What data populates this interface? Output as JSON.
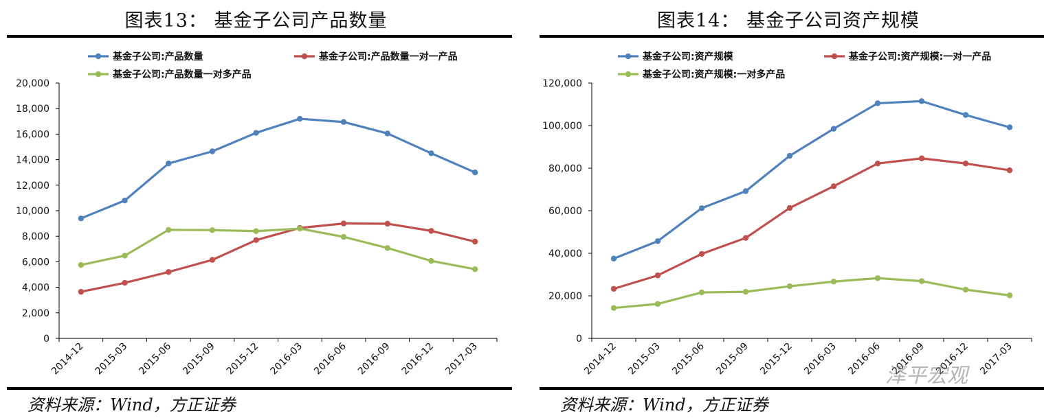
{
  "chart_data": [
    {
      "type": "line",
      "title": "图表13：  基金子公司产品数量",
      "categories": [
        "2014-12",
        "2015-03",
        "2015-06",
        "2015-09",
        "2015-12",
        "2016-03",
        "2016-06",
        "2016-09",
        "2016-12",
        "2017-03"
      ],
      "y_ticks": [
        "0",
        "2,000",
        "4,000",
        "6,000",
        "8,000",
        "10,000",
        "12,000",
        "14,000",
        "16,000",
        "18,000",
        "20,000"
      ],
      "ylim": [
        0,
        20000
      ],
      "grid": false,
      "legend_position": "top",
      "series": [
        {
          "name": "基金子公司:产品数量",
          "color": "#4F81BD",
          "values": [
            9400,
            10800,
            13700,
            14650,
            16100,
            17200,
            16950,
            16050,
            14500,
            13000
          ]
        },
        {
          "name": "基金子公司:产品数量一对一产品",
          "color": "#C0504D",
          "values": [
            3650,
            4350,
            5200,
            6150,
            7700,
            8650,
            9000,
            8980,
            8420,
            7580
          ]
        },
        {
          "name": "基金子公司:产品数量一对多产品",
          "color": "#9BBB59",
          "values": [
            5750,
            6480,
            8500,
            8480,
            8400,
            8600,
            7950,
            7080,
            6070,
            5420
          ]
        }
      ],
      "source": "资料来源：Wind，方正证券"
    },
    {
      "type": "line",
      "title": "图表14：  基金子公司资产规模",
      "categories": [
        "2014-12",
        "2015-03",
        "2015-06",
        "2015-09",
        "2015-12",
        "2016-03",
        "2016-06",
        "2016-09",
        "2016-12",
        "2017-03"
      ],
      "y_ticks": [
        "0",
        "20,000",
        "40,000",
        "60,000",
        "80,000",
        "100,000",
        "120,000"
      ],
      "ylim": [
        0,
        120000
      ],
      "grid": false,
      "legend_position": "top",
      "series": [
        {
          "name": "基金子公司:资产规模",
          "color": "#4F81BD",
          "values": [
            37500,
            45700,
            61200,
            69200,
            85800,
            98500,
            110500,
            111500,
            105000,
            99200
          ]
        },
        {
          "name": "基金子公司:资产规模:一对一产品",
          "color": "#C0504D",
          "values": [
            23300,
            29600,
            39700,
            47200,
            61300,
            71500,
            82200,
            84600,
            82200,
            79000
          ]
        },
        {
          "name": "基金子公司:资产规模:一对多产品",
          "color": "#9BBB59",
          "values": [
            14300,
            16200,
            21600,
            21900,
            24500,
            26700,
            28300,
            26900,
            22900,
            20200
          ]
        }
      ],
      "source": "资料来源：Wind，方正证券"
    }
  ],
  "watermark": "泽平宏观"
}
